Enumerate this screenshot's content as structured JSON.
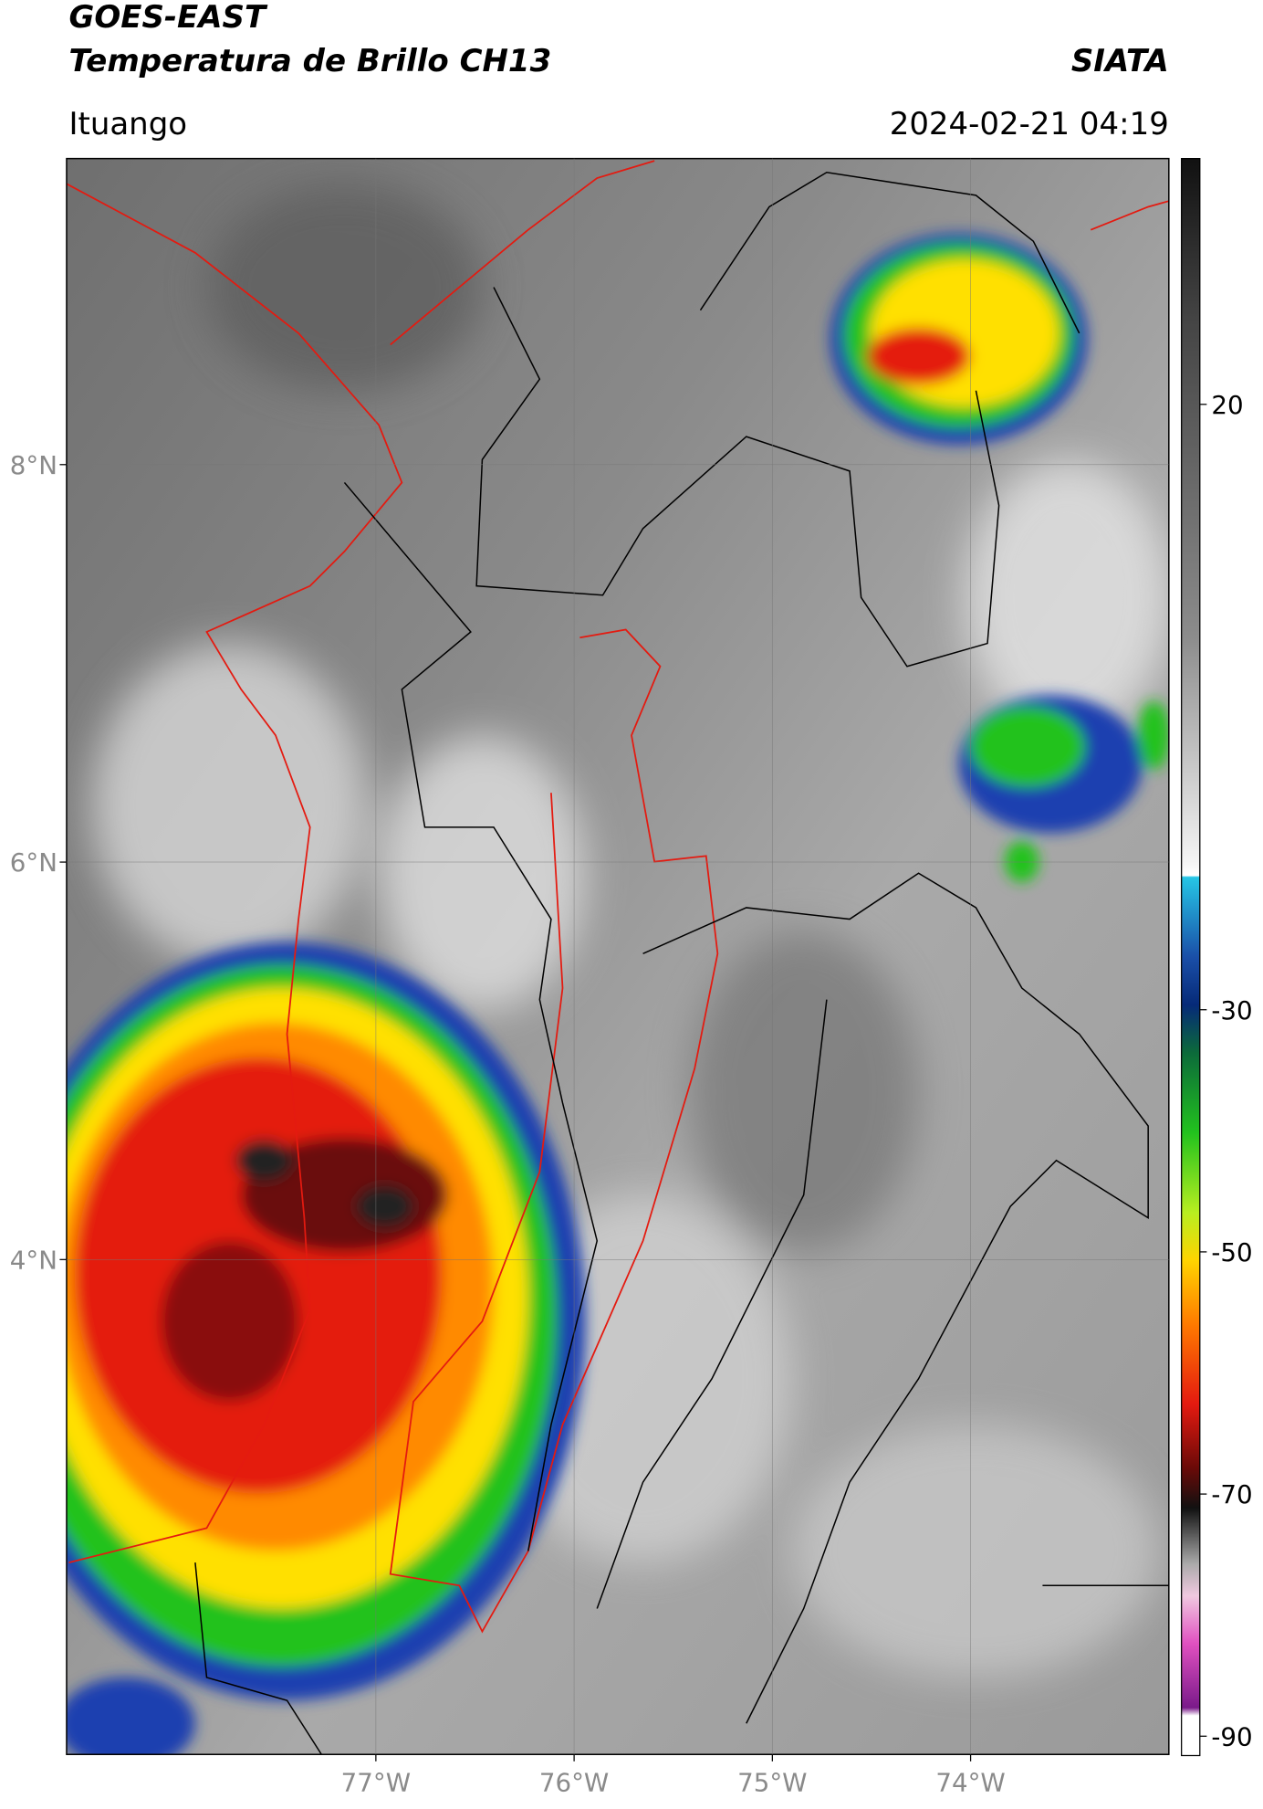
{
  "header": {
    "title_line1": "GOES-EAST",
    "title_line2": "Temperatura de Brillo CH13",
    "source": "SIATA",
    "location": "Ituango",
    "datetime": "2024-02-21 04:19"
  },
  "map": {
    "lon_lim": [
      -78.56,
      -73.0
    ],
    "lat_lim": [
      1.51,
      9.54
    ],
    "lon_ticks": [
      {
        "value": -77,
        "label": "77°W"
      },
      {
        "value": -76,
        "label": "76°W"
      },
      {
        "value": -75,
        "label": "75°W"
      },
      {
        "value": -74,
        "label": "74°W"
      }
    ],
    "lat_ticks": [
      {
        "value": 8,
        "label": "8°N"
      },
      {
        "value": 6,
        "label": "6°N"
      },
      {
        "value": 4,
        "label": "4°N"
      }
    ]
  },
  "colorbar": {
    "lim": [
      -91.6,
      40.3
    ],
    "ticks": [
      20,
      -30,
      -50,
      -70,
      -90
    ]
  }
}
